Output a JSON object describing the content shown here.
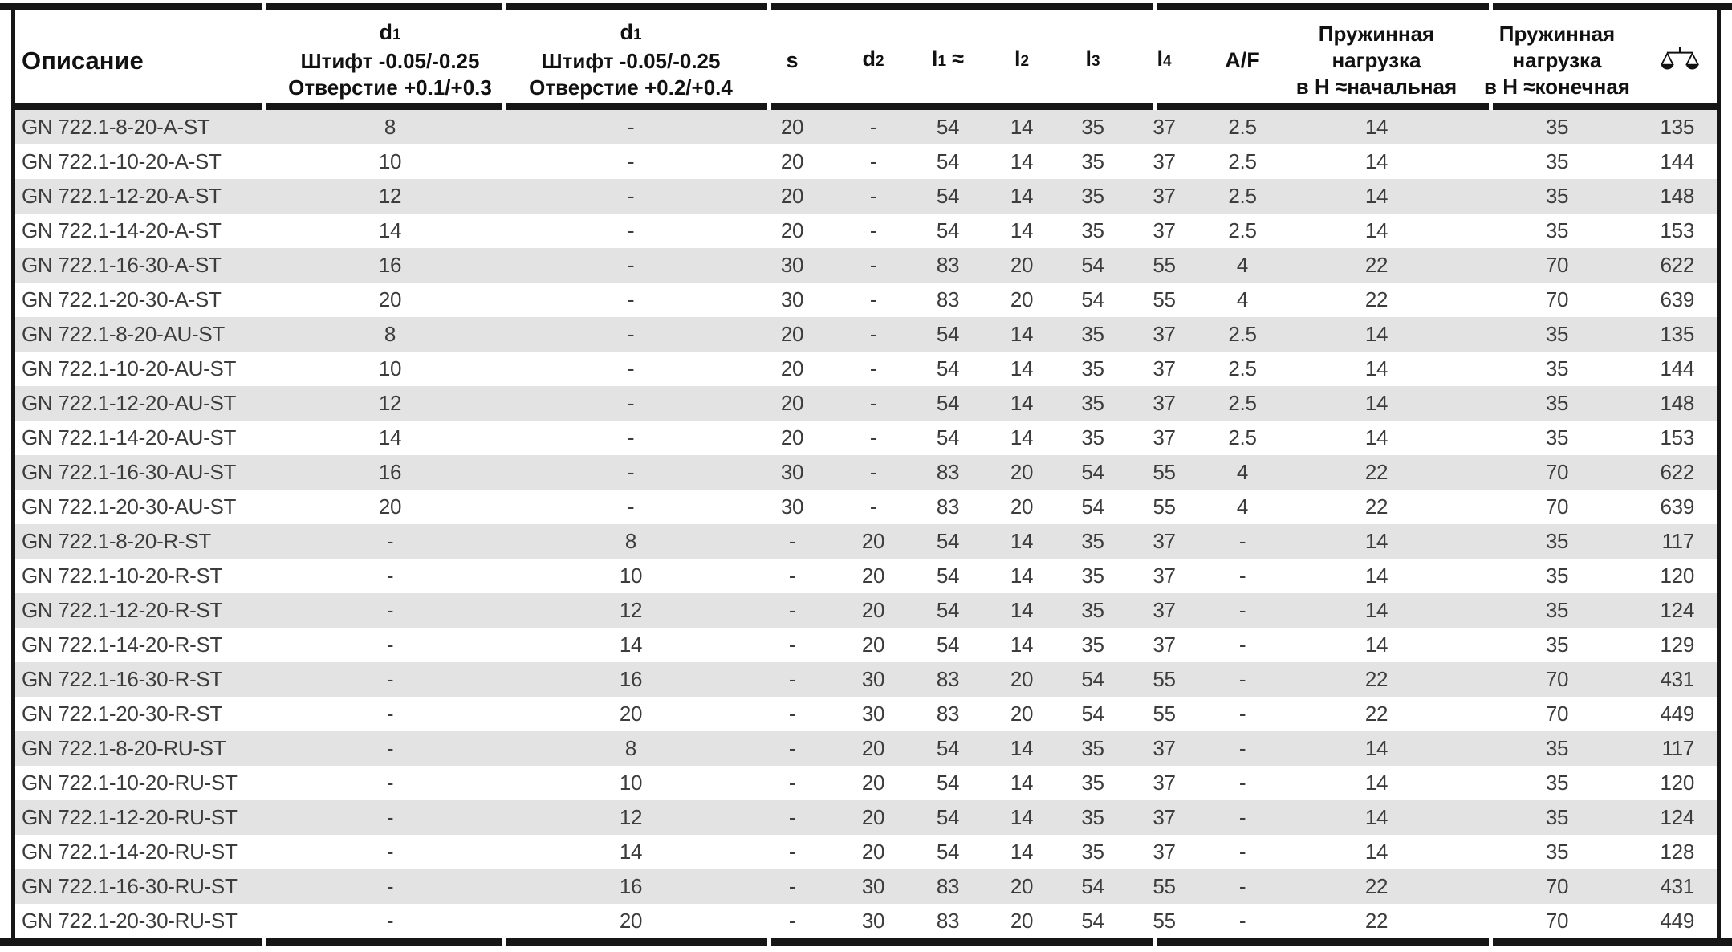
{
  "table": {
    "header": {
      "description": "Описание",
      "d1a": {
        "sym": "d",
        "sub": "1",
        "line2": "Штифт -0.05/-0.25",
        "line3": "Отверстие +0.1/+0.3"
      },
      "d1b": {
        "sym": "d",
        "sub": "1",
        "line2": "Штифт -0.05/-0.25",
        "line3": "Отверстие +0.2/+0.4"
      },
      "s": "s",
      "d2": {
        "sym": "d",
        "sub": "2"
      },
      "l1": {
        "sym": "l",
        "sub": "1",
        "approx": "≈"
      },
      "l2": {
        "sym": "l",
        "sub": "2"
      },
      "l3": {
        "sym": "l",
        "sub": "3"
      },
      "l4": {
        "sym": "l",
        "sub": "4"
      },
      "af": "A/F",
      "spring_initial": {
        "line1": "Пружинная",
        "line2": "нагрузка",
        "line3": "в Н ≈начальная"
      },
      "spring_final": {
        "line1": "Пружинная",
        "line2": "нагрузка",
        "line3": "в Н ≈конечная"
      },
      "weight_icon": "balance-scale-icon"
    },
    "column_ids": [
      "description",
      "d1-pin-hole-01-03",
      "d1-pin-hole-02-04",
      "s",
      "d2",
      "l1",
      "l2",
      "l3",
      "l4",
      "af",
      "spring-load-initial",
      "spring-load-final",
      "weight"
    ],
    "rows": [
      [
        "GN 722.1-8-20-A-ST",
        "8",
        "-",
        "20",
        "-",
        "54",
        "14",
        "35",
        "37",
        "2.5",
        "14",
        "35",
        "135"
      ],
      [
        "GN 722.1-10-20-A-ST",
        "10",
        "-",
        "20",
        "-",
        "54",
        "14",
        "35",
        "37",
        "2.5",
        "14",
        "35",
        "144"
      ],
      [
        "GN 722.1-12-20-A-ST",
        "12",
        "-",
        "20",
        "-",
        "54",
        "14",
        "35",
        "37",
        "2.5",
        "14",
        "35",
        "148"
      ],
      [
        "GN 722.1-14-20-A-ST",
        "14",
        "-",
        "20",
        "-",
        "54",
        "14",
        "35",
        "37",
        "2.5",
        "14",
        "35",
        "153"
      ],
      [
        "GN 722.1-16-30-A-ST",
        "16",
        "-",
        "30",
        "-",
        "83",
        "20",
        "54",
        "55",
        "4",
        "22",
        "70",
        "622"
      ],
      [
        "GN 722.1-20-30-A-ST",
        "20",
        "-",
        "30",
        "-",
        "83",
        "20",
        "54",
        "55",
        "4",
        "22",
        "70",
        "639"
      ],
      [
        "GN 722.1-8-20-AU-ST",
        "8",
        "-",
        "20",
        "-",
        "54",
        "14",
        "35",
        "37",
        "2.5",
        "14",
        "35",
        "135"
      ],
      [
        "GN 722.1-10-20-AU-ST",
        "10",
        "-",
        "20",
        "-",
        "54",
        "14",
        "35",
        "37",
        "2.5",
        "14",
        "35",
        "144"
      ],
      [
        "GN 722.1-12-20-AU-ST",
        "12",
        "-",
        "20",
        "-",
        "54",
        "14",
        "35",
        "37",
        "2.5",
        "14",
        "35",
        "148"
      ],
      [
        "GN 722.1-14-20-AU-ST",
        "14",
        "-",
        "20",
        "-",
        "54",
        "14",
        "35",
        "37",
        "2.5",
        "14",
        "35",
        "153"
      ],
      [
        "GN 722.1-16-30-AU-ST",
        "16",
        "-",
        "30",
        "-",
        "83",
        "20",
        "54",
        "55",
        "4",
        "22",
        "70",
        "622"
      ],
      [
        "GN 722.1-20-30-AU-ST",
        "20",
        "-",
        "30",
        "-",
        "83",
        "20",
        "54",
        "55",
        "4",
        "22",
        "70",
        "639"
      ],
      [
        "GN 722.1-8-20-R-ST",
        "-",
        "8",
        "-",
        "20",
        "54",
        "14",
        "35",
        "37",
        "-",
        "14",
        "35",
        "117"
      ],
      [
        "GN 722.1-10-20-R-ST",
        "-",
        "10",
        "-",
        "20",
        "54",
        "14",
        "35",
        "37",
        "-",
        "14",
        "35",
        "120"
      ],
      [
        "GN 722.1-12-20-R-ST",
        "-",
        "12",
        "-",
        "20",
        "54",
        "14",
        "35",
        "37",
        "-",
        "14",
        "35",
        "124"
      ],
      [
        "GN 722.1-14-20-R-ST",
        "-",
        "14",
        "-",
        "20",
        "54",
        "14",
        "35",
        "37",
        "-",
        "14",
        "35",
        "129"
      ],
      [
        "GN 722.1-16-30-R-ST",
        "-",
        "16",
        "-",
        "30",
        "83",
        "20",
        "54",
        "55",
        "-",
        "22",
        "70",
        "431"
      ],
      [
        "GN 722.1-20-30-R-ST",
        "-",
        "20",
        "-",
        "30",
        "83",
        "20",
        "54",
        "55",
        "-",
        "22",
        "70",
        "449"
      ],
      [
        "GN 722.1-8-20-RU-ST",
        "-",
        "8",
        "-",
        "20",
        "54",
        "14",
        "35",
        "37",
        "-",
        "14",
        "35",
        "117"
      ],
      [
        "GN 722.1-10-20-RU-ST",
        "-",
        "10",
        "-",
        "20",
        "54",
        "14",
        "35",
        "37",
        "-",
        "14",
        "35",
        "120"
      ],
      [
        "GN 722.1-12-20-RU-ST",
        "-",
        "12",
        "-",
        "20",
        "54",
        "14",
        "35",
        "37",
        "-",
        "14",
        "35",
        "124"
      ],
      [
        "GN 722.1-14-20-RU-ST",
        "-",
        "14",
        "-",
        "20",
        "54",
        "14",
        "35",
        "37",
        "-",
        "14",
        "35",
        "128"
      ],
      [
        "GN 722.1-16-30-RU-ST",
        "-",
        "16",
        "-",
        "30",
        "83",
        "20",
        "54",
        "55",
        "-",
        "22",
        "70",
        "431"
      ],
      [
        "GN 722.1-20-30-RU-ST",
        "-",
        "20",
        "-",
        "30",
        "83",
        "20",
        "54",
        "55",
        "-",
        "22",
        "70",
        "449"
      ]
    ],
    "colors": {
      "stripe": "#e3e3e3",
      "frame": "#161616",
      "text": "#3c3c3c"
    }
  }
}
